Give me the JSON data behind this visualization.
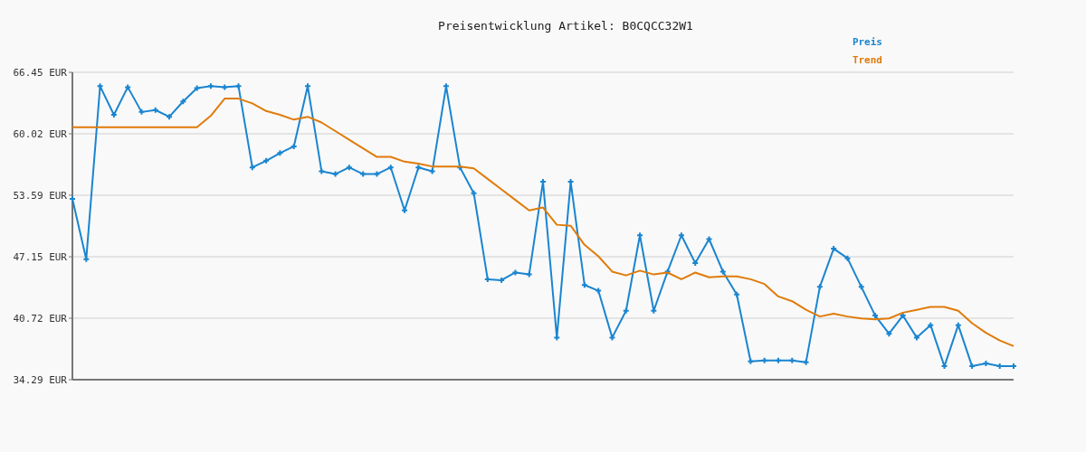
{
  "chart_data": {
    "type": "line",
    "title": "Preisentwicklung Artikel: B0CQCC32W1",
    "categories": [
      null,
      null,
      null,
      null,
      null,
      null,
      null,
      null,
      null,
      null,
      null,
      null,
      null,
      null,
      null,
      null,
      null,
      null,
      null,
      null,
      null,
      null,
      null,
      null,
      null,
      null,
      null,
      null,
      null,
      null,
      null,
      null,
      null,
      null,
      null,
      null,
      null,
      null,
      null,
      null,
      null,
      null,
      null,
      null,
      null,
      null,
      null,
      null,
      null,
      null,
      null,
      null,
      null,
      null,
      null,
      null,
      null,
      null,
      null,
      null,
      null,
      null,
      null,
      null,
      null,
      null,
      null,
      null,
      null
    ],
    "series": [
      {
        "name": "Preis",
        "color": "#1a85d0",
        "marker": "cross",
        "values": [
          53.2,
          46.9,
          65.0,
          62.0,
          64.9,
          62.3,
          62.5,
          61.8,
          63.4,
          64.8,
          65.0,
          64.9,
          65.0,
          56.5,
          57.2,
          58.0,
          58.7,
          65.0,
          56.1,
          55.8,
          56.5,
          55.8,
          55.8,
          56.5,
          52.0,
          56.5,
          56.1,
          65.0,
          56.5,
          53.8,
          44.8,
          44.7,
          45.5,
          45.3,
          55.0,
          38.7,
          55.0,
          44.2,
          43.6,
          38.7,
          41.5,
          49.4,
          41.5,
          45.6,
          49.4,
          46.5,
          49.0,
          45.6,
          43.2,
          36.2,
          36.3,
          36.3,
          36.3,
          36.1,
          44.0,
          48.0,
          47.0,
          44.0,
          41.0,
          39.1,
          41.0,
          38.7,
          40.0,
          35.7,
          40.0,
          35.7,
          36.0,
          35.7,
          35.7
        ]
      },
      {
        "name": "Trend",
        "color": "#e07b0a",
        "values": [
          60.7,
          60.7,
          60.7,
          60.7,
          60.7,
          60.7,
          60.7,
          60.7,
          60.7,
          60.7,
          61.9,
          63.7,
          63.7,
          63.2,
          62.4,
          62.0,
          61.5,
          61.8,
          61.2,
          60.3,
          59.4,
          58.5,
          57.6,
          57.6,
          57.1,
          56.9,
          56.6,
          56.6,
          56.6,
          56.4,
          55.3,
          54.2,
          53.1,
          52.0,
          52.3,
          50.5,
          50.4,
          48.4,
          47.2,
          45.6,
          45.2,
          45.7,
          45.3,
          45.5,
          44.8,
          45.5,
          45.0,
          45.1,
          45.1,
          44.8,
          44.3,
          43.0,
          42.5,
          41.6,
          40.9,
          41.2,
          40.9,
          40.7,
          40.6,
          40.7,
          41.3,
          41.6,
          41.9,
          41.9,
          41.5,
          40.2,
          39.2,
          38.4,
          37.8
        ]
      }
    ],
    "ylim": [
      34.29,
      66.45
    ],
    "yticks": [
      {
        "value": 34.29,
        "label": "34.29 EUR"
      },
      {
        "value": 40.72,
        "label": "40.72 EUR"
      },
      {
        "value": 47.15,
        "label": "47.15 EUR"
      },
      {
        "value": 53.59,
        "label": "53.59 EUR"
      },
      {
        "value": 60.02,
        "label": "60.02 EUR"
      },
      {
        "value": 66.45,
        "label": "66.45 EUR"
      }
    ],
    "grid": "y",
    "legend": "top right",
    "line_style": "solid"
  }
}
